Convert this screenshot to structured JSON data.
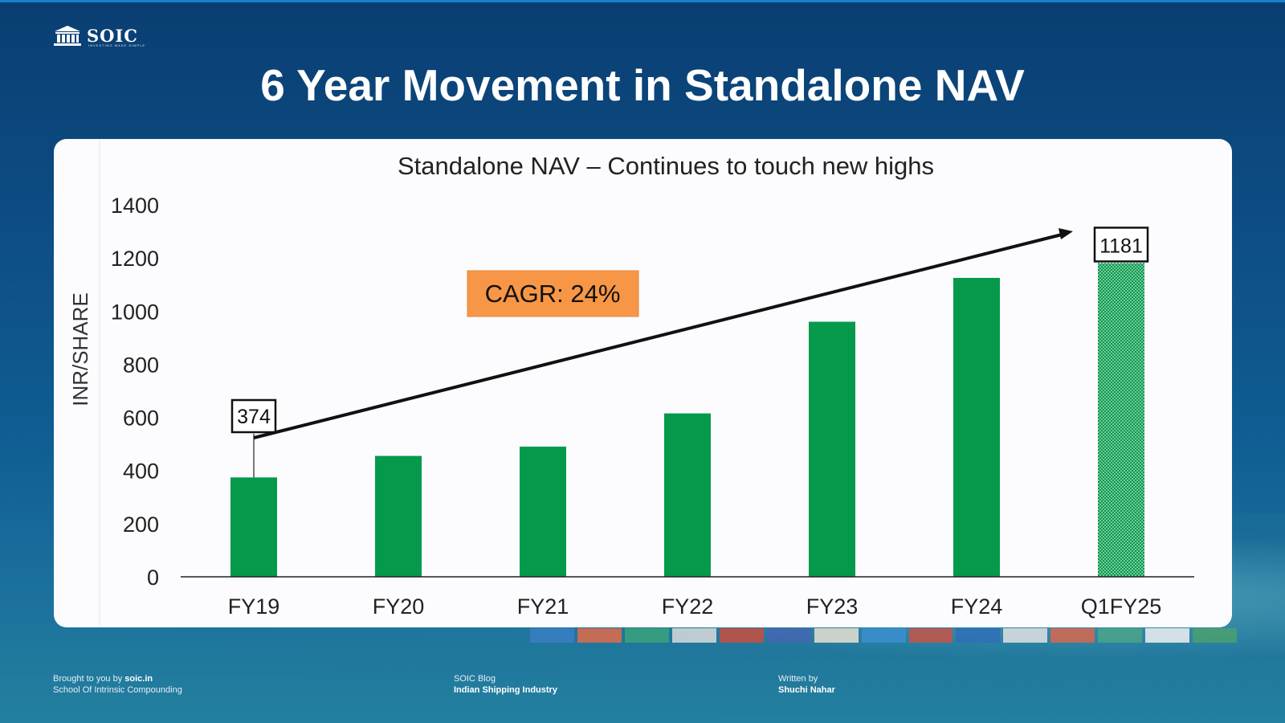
{
  "header": {
    "logo_text": "SOIC",
    "logo_tagline": "INVESTING MADE SIMPLE",
    "title": "6 Year Movement in Standalone NAV"
  },
  "chart_data": {
    "type": "bar",
    "title": "Standalone NAV – Continues to touch new highs",
    "xlabel": "",
    "ylabel": "INR/SHARE",
    "categories": [
      "FY19",
      "FY20",
      "FY21",
      "FY22",
      "FY23",
      "FY24",
      "Q1FY25"
    ],
    "values": [
      374,
      455,
      490,
      615,
      960,
      1125,
      1181
    ],
    "ylim": [
      0,
      1400
    ],
    "yticks": [
      0,
      200,
      400,
      600,
      800,
      1000,
      1200,
      1400
    ],
    "grid": false,
    "legend": "none",
    "bar_color": "#05994c",
    "last_bar_pattern": "dotted",
    "data_labels": [
      {
        "category": "FY19",
        "text": "374"
      },
      {
        "category": "Q1FY25",
        "text": "1181"
      }
    ],
    "annotation": {
      "text": "CAGR: 24%",
      "color": "#f79646"
    }
  },
  "footer": {
    "left_prefix": "Brought to you by ",
    "left_link": "soic.in",
    "left_line2": "School Of Intrinsic Compounding",
    "mid_line1": "SOIC Blog",
    "mid_line2": "Indian Shipping Industry",
    "right_line1": "Written by",
    "right_line2": "Shuchi Nahar"
  }
}
